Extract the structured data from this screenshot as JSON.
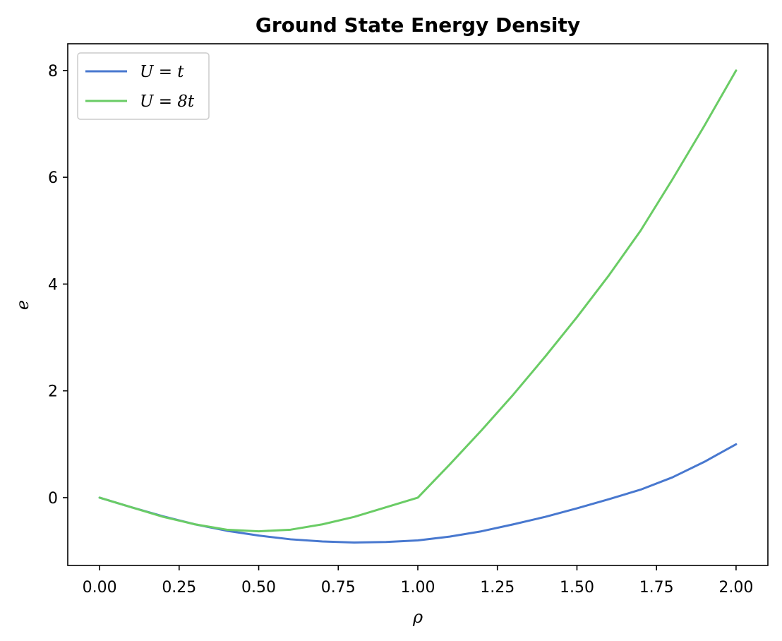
{
  "chart_data": {
    "type": "line",
    "title": "Ground State Energy Density",
    "xlabel": "ρ",
    "ylabel": "e",
    "xlim": [
      -0.1,
      2.1
    ],
    "ylim": [
      -1.27,
      8.5
    ],
    "xticks": [
      0.0,
      0.25,
      0.5,
      0.75,
      1.0,
      1.25,
      1.5,
      1.75,
      2.0
    ],
    "xtick_labels": [
      "0.00",
      "0.25",
      "0.50",
      "0.75",
      "1.00",
      "1.25",
      "1.50",
      "1.75",
      "2.00"
    ],
    "yticks": [
      0,
      2,
      4,
      6,
      8
    ],
    "ytick_labels": [
      "0",
      "2",
      "4",
      "6",
      "8"
    ],
    "grid": false,
    "legend_position": "top-left",
    "series": [
      {
        "name": "U = t",
        "color": "#4878cf",
        "x": [
          0.0,
          0.1,
          0.2,
          0.3,
          0.4,
          0.5,
          0.6,
          0.7,
          0.8,
          0.9,
          1.0,
          1.1,
          1.2,
          1.3,
          1.4,
          1.5,
          1.6,
          1.7,
          1.8,
          1.9,
          2.0
        ],
        "y": [
          0.0,
          -0.18,
          -0.35,
          -0.5,
          -0.62,
          -0.71,
          -0.78,
          -0.82,
          -0.84,
          -0.83,
          -0.8,
          -0.73,
          -0.63,
          -0.5,
          -0.36,
          -0.2,
          -0.03,
          0.15,
          0.38,
          0.67,
          1.0
        ]
      },
      {
        "name": "U = 8t",
        "color": "#6acc65",
        "x": [
          0.0,
          0.1,
          0.2,
          0.3,
          0.4,
          0.5,
          0.6,
          0.7,
          0.8,
          0.9,
          1.0,
          1.1,
          1.2,
          1.3,
          1.4,
          1.5,
          1.6,
          1.7,
          1.8,
          1.9,
          2.0
        ],
        "y": [
          0.0,
          -0.18,
          -0.36,
          -0.5,
          -0.6,
          -0.63,
          -0.6,
          -0.5,
          -0.36,
          -0.18,
          0.0,
          0.62,
          1.26,
          1.93,
          2.64,
          3.38,
          4.16,
          5.0,
          5.96,
          6.96,
          8.0
        ]
      }
    ]
  }
}
